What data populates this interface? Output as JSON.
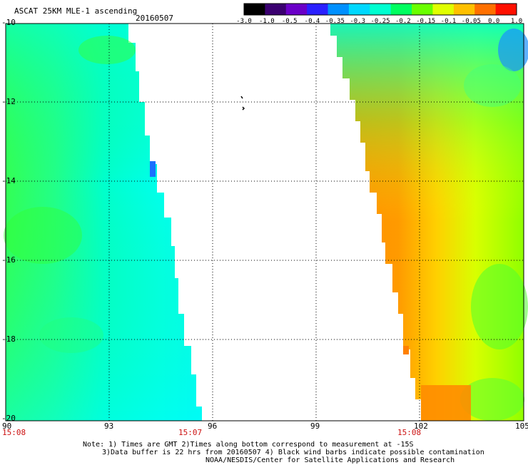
{
  "header": {
    "title": "ASCAT 25KM MLE-1 ascending",
    "date": "20160507"
  },
  "colorbar": {
    "labels": [
      "-3.0",
      "-1.0",
      "-0.5",
      "-0.4",
      "-0.35",
      "-0.3",
      "-0.25",
      "-0.2",
      "-0.15",
      "-0.1",
      "-0.05",
      "0.0",
      "1.0"
    ],
    "colors": [
      "#000000",
      "#3a0070",
      "#6a00c8",
      "#2a20ff",
      "#0090ff",
      "#00d8ff",
      "#00ffd0",
      "#00ff60",
      "#6aff00",
      "#e0ff00",
      "#ffc000",
      "#ff7000",
      "#ff1000"
    ]
  },
  "map": {
    "lat_labels": [
      "-10",
      "-12",
      "-14",
      "-16",
      "-18",
      "-20"
    ],
    "lon_labels": [
      "90",
      "93",
      "96",
      "99",
      "102",
      "105"
    ],
    "times": [
      "15:08",
      "15:07",
      "15:08"
    ]
  },
  "footer": {
    "note1": "Note: 1) Times are GMT 2)Times along bottom correspond to measurement at -15S",
    "note2": "3)Data buffer is 22 hrs from 20160507 4) Black wind barbs indicate possible contamination",
    "note3": "NOAA/NESDIS/Center for Satellite Applications and Research"
  }
}
